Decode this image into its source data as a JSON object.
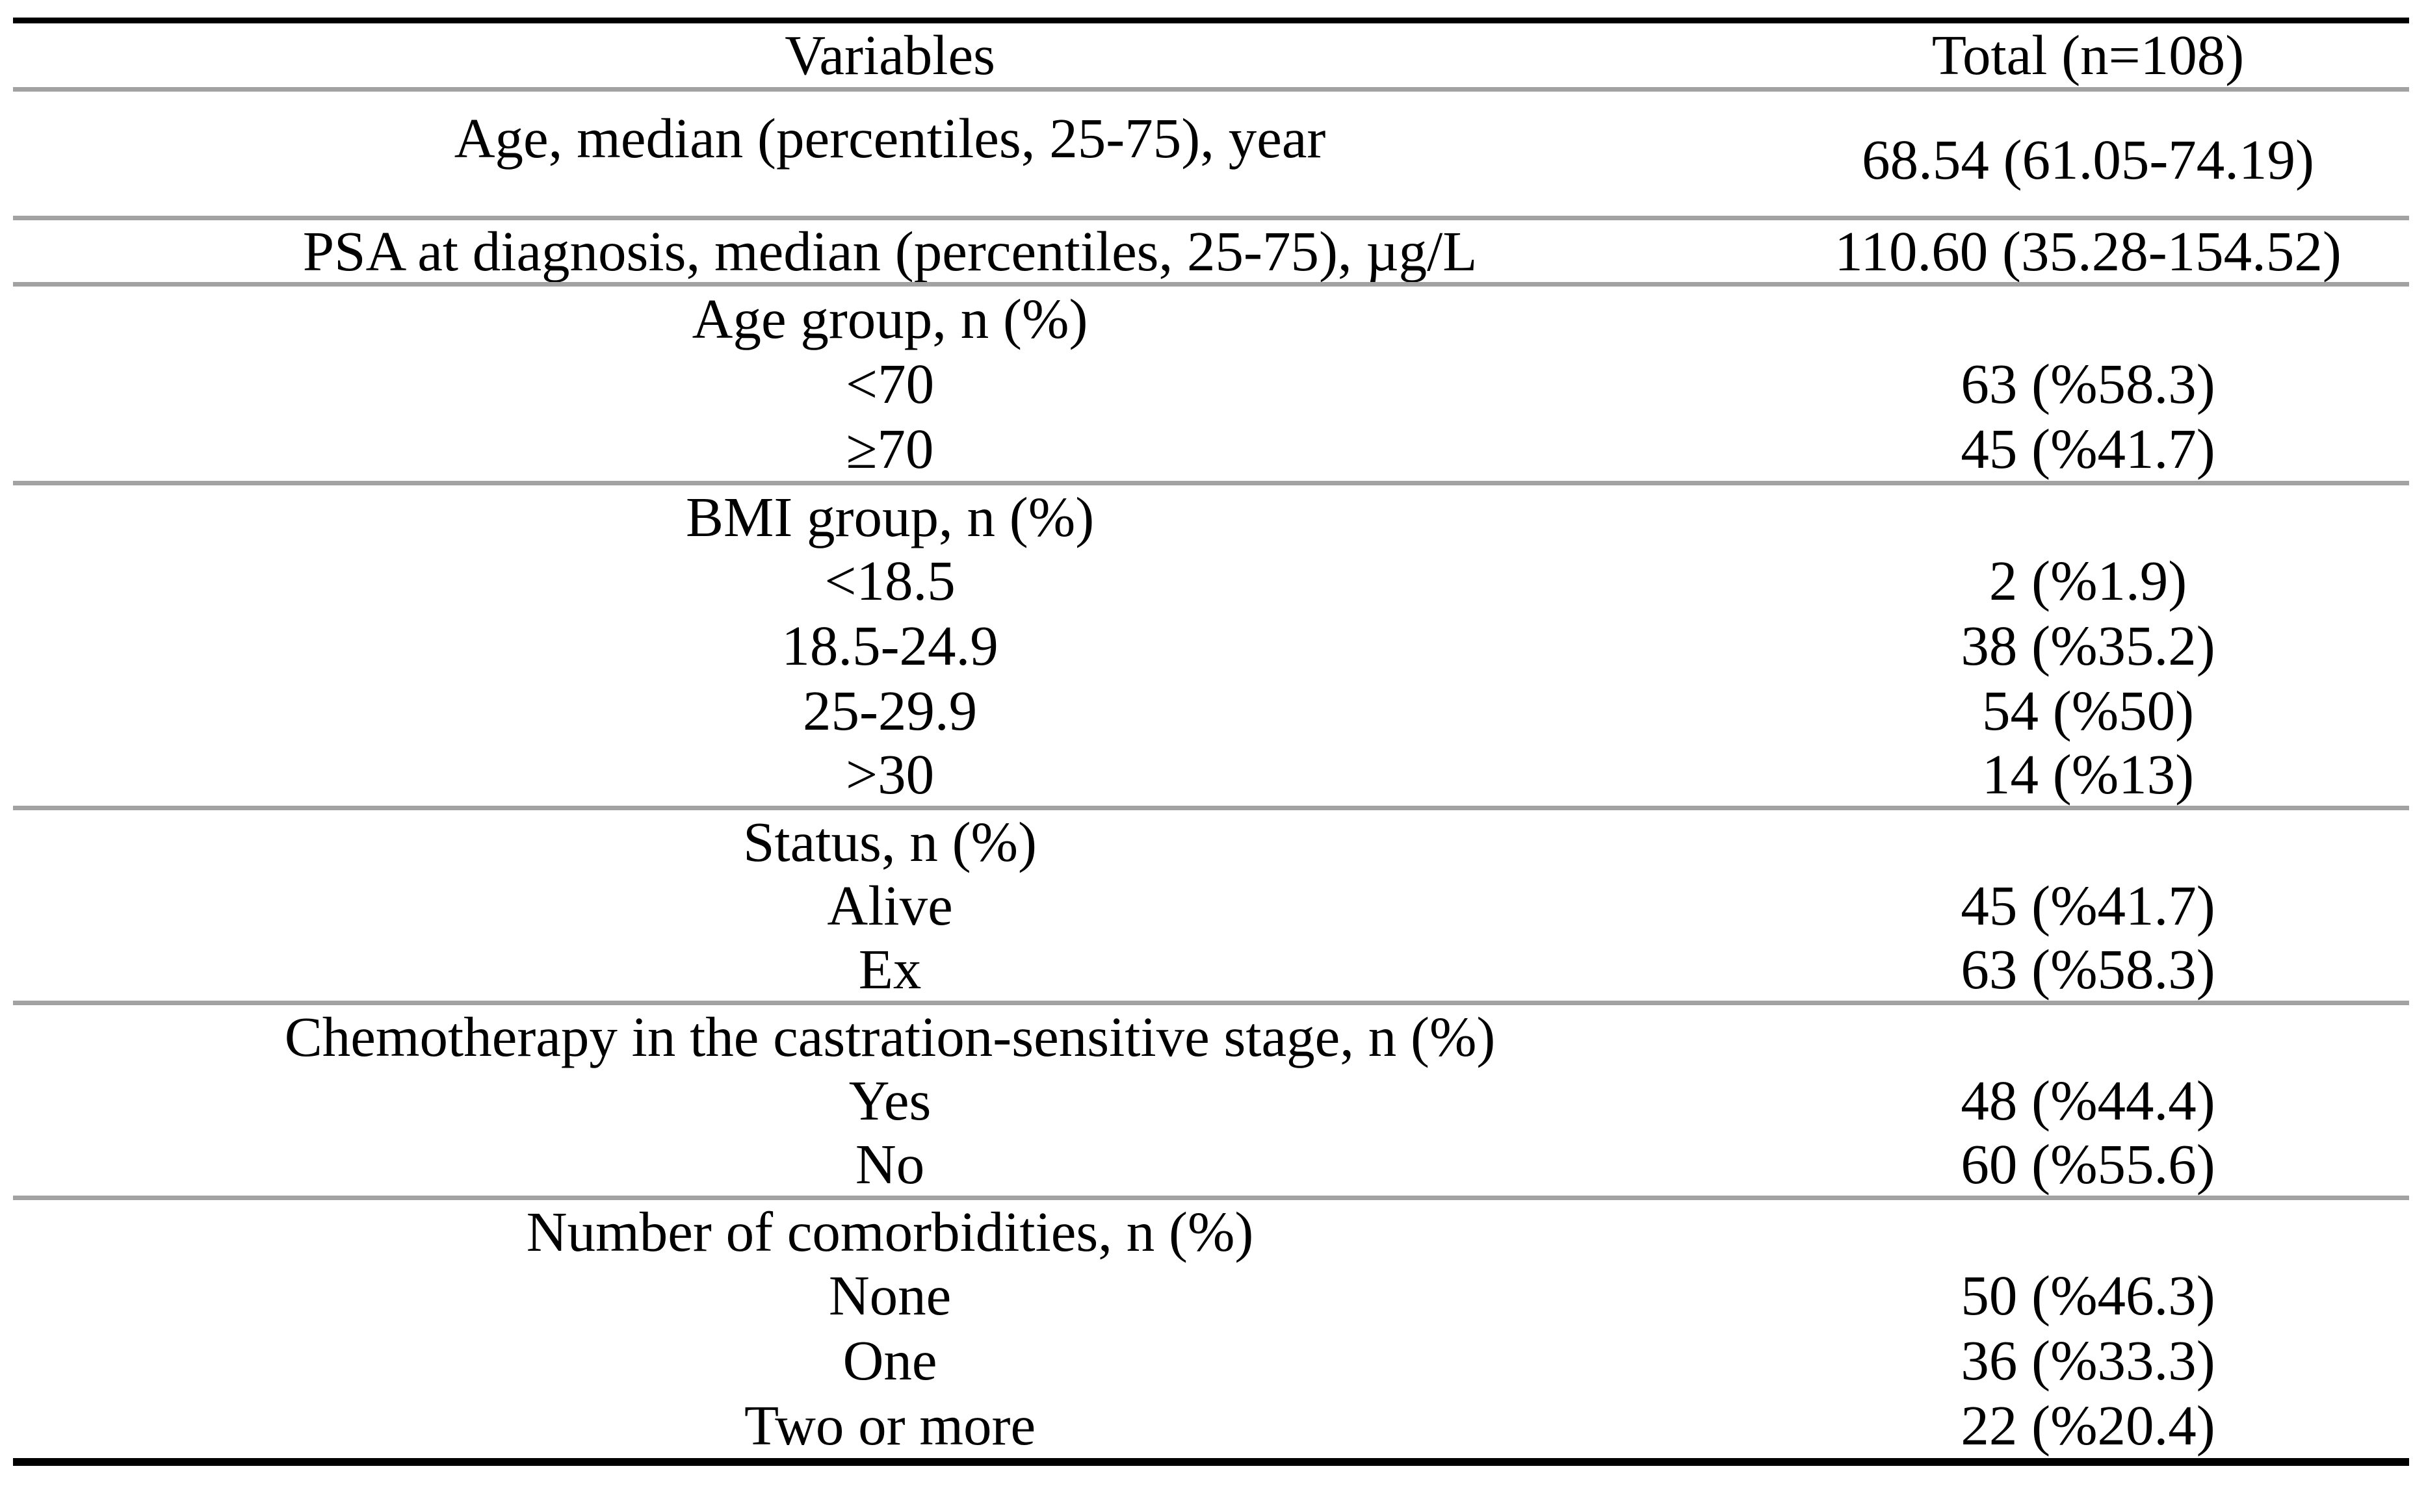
{
  "table": {
    "header": {
      "variables": "Variables",
      "total": "Total (n=108)"
    },
    "rows": [
      {
        "label": "Age, median (percentiles, 25-75), year",
        "value": "68.54 (61.05-74.19)"
      },
      {
        "label": "PSA at diagnosis, median (percentiles, 25-75), µg/L",
        "value": "110.60 (35.28-154.52)"
      },
      {
        "label": "Age group, n (%)",
        "value": ""
      },
      {
        "label": "<70",
        "value": "63 (%58.3)"
      },
      {
        "label": "≥70",
        "value": "45 (%41.7)"
      },
      {
        "label": "BMI group, n (%)",
        "value": ""
      },
      {
        "label": "<18.5",
        "value": "2 (%1.9)"
      },
      {
        "label": "18.5-24.9",
        "value": "38 (%35.2)"
      },
      {
        "label": "25-29.9",
        "value": "54 (%50)"
      },
      {
        "label": ">30",
        "value": "14 (%13)"
      },
      {
        "label": "Status, n (%)",
        "value": ""
      },
      {
        "label": "Alive",
        "value": "45 (%41.7)"
      },
      {
        "label": "Ex",
        "value": "63 (%58.3)"
      },
      {
        "label": "Chemotherapy in the castration-sensitive stage, n (%)",
        "value": ""
      },
      {
        "label": "Yes",
        "value": "48 (%44.4)"
      },
      {
        "label": "No",
        "value": "60 (%55.6)"
      },
      {
        "label": "Number of comorbidities, n (%)",
        "value": ""
      },
      {
        "label": "None",
        "value": "50 (%46.3)"
      },
      {
        "label": "One",
        "value": "36 (%33.3)"
      },
      {
        "label": "Two or more",
        "value": "22 (%20.4)"
      }
    ],
    "colors": {
      "text": "#000000",
      "thick_border": "#000000",
      "rule_gray": "#a2a2a2",
      "background": "#ffffff"
    }
  }
}
